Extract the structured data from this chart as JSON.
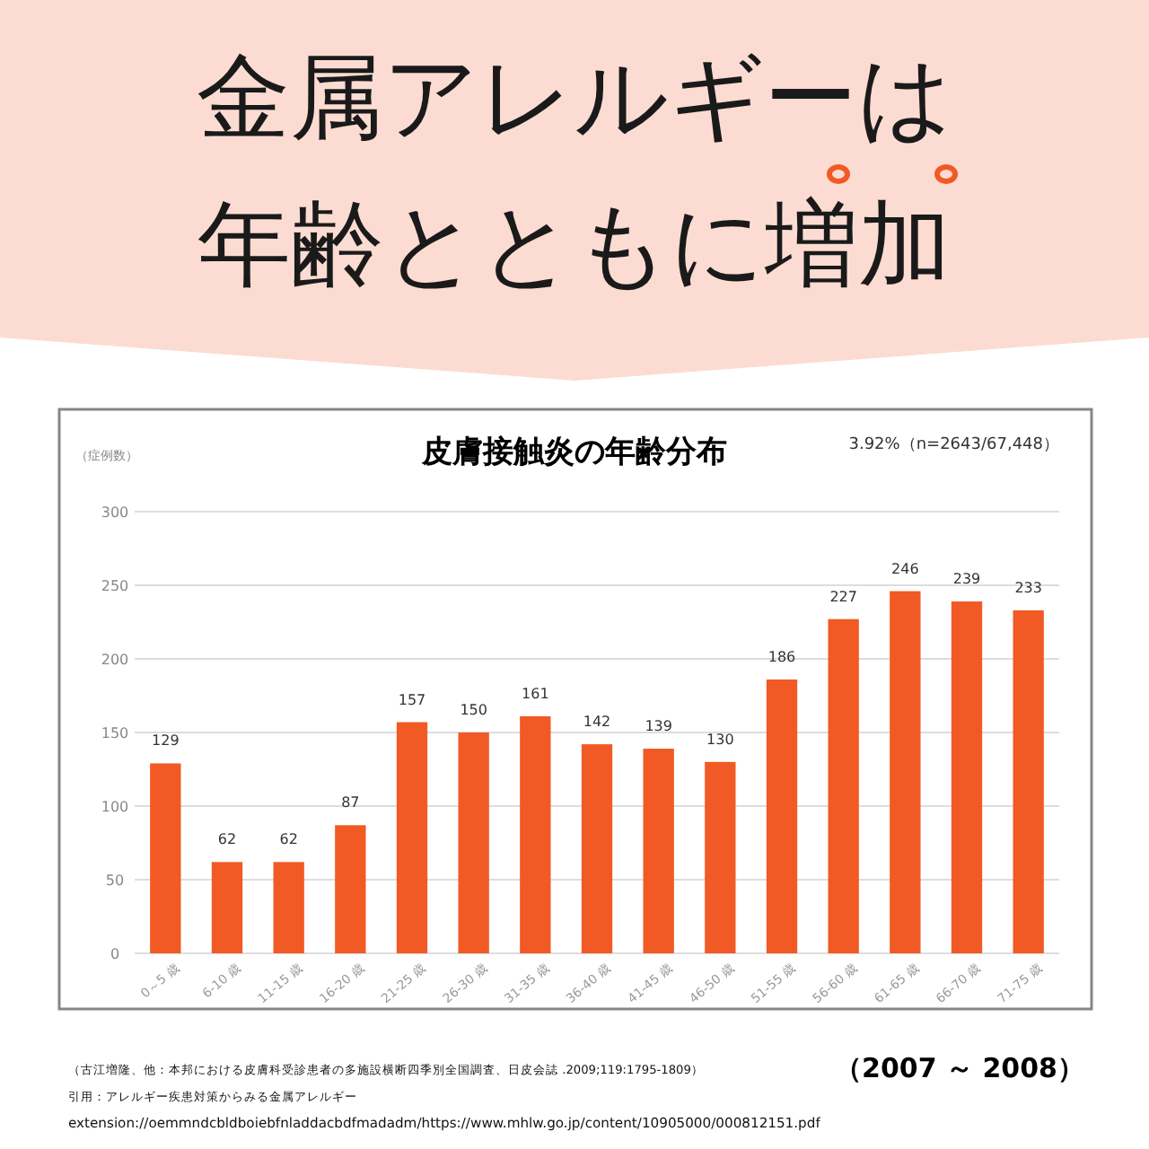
{
  "chart_data": {
    "type": "bar",
    "title": "金属アレルギーは年齢とともに増加",
    "subtitle": "皮膚接触炎の年齢分布",
    "ylabel": "（症例数）",
    "categories": [
      "0～5 歳",
      "6-10 歳",
      "11-15 歳",
      "16-20 歳",
      "21-25 歳",
      "26-30 歳",
      "31-35 歳",
      "36-40 歳",
      "41-45 歳",
      "46-50 歳",
      "51-55 歳",
      "56-60 歳",
      "61-65 歳",
      "66-70 歳",
      "71-75 歳"
    ],
    "values": [
      129,
      62,
      62,
      87,
      157,
      150,
      161,
      142,
      139,
      130,
      186,
      227,
      246,
      239,
      233
    ],
    "color": "#f15a24",
    "ylim": [
      0,
      300
    ],
    "yticks": [
      0,
      50,
      100,
      150,
      200,
      250,
      300
    ],
    "grid": "y",
    "data_labels": true,
    "annotations": [
      "3.92%（n=2643/67,448）",
      "（2007 ～ 2008）",
      "（古江増隆、他：本邦における皮膚科受診患者の多施設横断四季別全国調査、日皮会誌 .2009;119:1795-1809）",
      "引用：アレルギー疾患対策からみる金属アレルギー",
      "extension://oemmndcbldboiebfnladdacbdfmadadm/https://www.mhlw.go.jp/content/10905000/000812151.pdf"
    ]
  }
}
